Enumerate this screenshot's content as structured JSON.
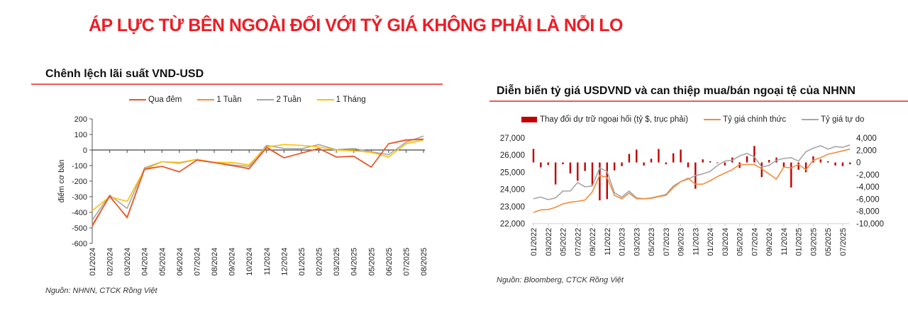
{
  "header": {
    "title": "ÁP LỰC TỪ BÊN NGOÀI ĐỐI VỚI TỶ GIÁ KHÔNG PHẢI LÀ NỖI LO",
    "title_color": "#ee1c25"
  },
  "left_panel": {
    "title": "Chênh lệch lãi suất VND-USD",
    "source": "Nguồn: NHNN, CTCK Rồng Việt",
    "legend": [
      "Qua đêm",
      "1 Tuần",
      "2 Tuần",
      "1 Tháng"
    ]
  },
  "right_panel": {
    "title": "Diễn biến tỷ giá USDVND và can thiệp mua/bán ngoại tệ của NHNN",
    "source": "Nguồn: Bloomberg, CTCK Rồng Việt",
    "legend": [
      "Thay đổi dự trữ ngoại hối (tỷ $, trục phải)",
      "Tỷ giá chính thức",
      "Tỷ giá tự do"
    ]
  },
  "chart_data": [
    {
      "type": "line",
      "title": "Chênh lệch lãi suất VND-USD",
      "xlabel": "",
      "ylabel": "điểm cơ bản",
      "ylim": [
        -600,
        200
      ],
      "yticks": [
        200,
        100,
        0,
        -100,
        -200,
        -300,
        -400,
        -500,
        -600
      ],
      "grid": false,
      "legend_position": "top",
      "categories": [
        "01/2024",
        "02/2024",
        "03/2024",
        "04/2024",
        "05/2024",
        "06/2024",
        "07/2024",
        "08/2024",
        "09/2024",
        "10/2024",
        "11/2024",
        "12/2024",
        "01/2025",
        "02/2025",
        "03/2025",
        "04/2025",
        "05/2025",
        "06/2025",
        "07/2025",
        "08/2025"
      ],
      "series": [
        {
          "name": "Qua đêm",
          "color": "#e8542a",
          "values": [
            -490,
            -295,
            -435,
            -125,
            -105,
            -140,
            -65,
            -80,
            -100,
            -120,
            15,
            -50,
            -20,
            10,
            -45,
            -40,
            -110,
            40,
            65,
            70
          ]
        },
        {
          "name": "1 Tuần",
          "color": "#f28c3c",
          "values": [
            -480,
            -300,
            -430,
            -120,
            -105,
            -140,
            -65,
            -82,
            -100,
            -118,
            20,
            -50,
            -20,
            10,
            -45,
            -40,
            -110,
            40,
            62,
            68
          ]
        },
        {
          "name": "2 Tuần",
          "color": "#a6a6a6",
          "values": [
            -450,
            -290,
            -375,
            -115,
            -75,
            -85,
            -60,
            -80,
            -95,
            -105,
            30,
            10,
            8,
            35,
            2,
            10,
            -12,
            -30,
            50,
            90
          ]
        },
        {
          "name": "1 Tháng",
          "color": "#ffc000",
          "values": [
            -390,
            -300,
            -330,
            -125,
            -75,
            -80,
            -60,
            -80,
            -80,
            -95,
            20,
            35,
            30,
            20,
            0,
            -5,
            -15,
            -45,
            40,
            65
          ]
        }
      ]
    },
    {
      "type": "line+bar",
      "title": "Diễn biến tỷ giá USDVND và can thiệp mua/bán ngoại tệ của NHNN",
      "xlabel": "",
      "ylabel_left": "",
      "ylabel_right": "",
      "ylim_left": [
        22000,
        27000
      ],
      "yticks_left": [
        27000,
        26000,
        25000,
        24000,
        23000,
        22000
      ],
      "ylim_right": [
        -10000,
        4000
      ],
      "yticks_right": [
        4000,
        2000,
        0,
        -2000,
        -4000,
        -6000,
        -8000,
        -10000
      ],
      "grid": false,
      "legend_position": "top",
      "xtick_labels": [
        "01/2022",
        "03/2022",
        "05/2022",
        "07/2022",
        "09/2022",
        "11/2022",
        "01/2023",
        "03/2023",
        "05/2023",
        "07/2023",
        "09/2023",
        "11/2023",
        "01/2024",
        "03/2024",
        "05/2024",
        "07/2024",
        "09/2024",
        "11/2024",
        "01/2025",
        "03/2025",
        "05/2025",
        "07/2025"
      ],
      "categories": [
        "01/2022",
        "02/2022",
        "03/2022",
        "04/2022",
        "05/2022",
        "06/2022",
        "07/2022",
        "08/2022",
        "09/2022",
        "10/2022",
        "11/2022",
        "12/2022",
        "01/2023",
        "02/2023",
        "03/2023",
        "04/2023",
        "05/2023",
        "06/2023",
        "07/2023",
        "08/2023",
        "09/2023",
        "10/2023",
        "11/2023",
        "12/2023",
        "01/2024",
        "02/2024",
        "03/2024",
        "04/2024",
        "05/2024",
        "06/2024",
        "07/2024",
        "08/2024",
        "09/2024",
        "10/2024",
        "11/2024",
        "12/2024",
        "01/2025",
        "02/2025",
        "03/2025",
        "04/2025",
        "05/2025",
        "06/2025",
        "07/2025",
        "08/2025"
      ],
      "series": [
        {
          "name": "Thay đổi dự trữ ngoại hối (tỷ $, trục phải)",
          "type": "bar",
          "axis": "right",
          "color": "#c00000",
          "values": [
            2200,
            -800,
            -400,
            -3600,
            -300,
            -1800,
            -3000,
            -1400,
            -3700,
            -6200,
            -6000,
            -1300,
            -600,
            1400,
            2100,
            -500,
            600,
            2200,
            -300,
            1500,
            2100,
            -800,
            -4300,
            500,
            200,
            -100,
            -500,
            800,
            -900,
            1000,
            2700,
            -2400,
            400,
            800,
            -800,
            -4100,
            -1200,
            -1600,
            1000,
            500,
            200,
            -500,
            -600,
            -300
          ]
        },
        {
          "name": "Tỷ giá chính thức",
          "type": "line",
          "axis": "left",
          "color": "#f28c3c",
          "values": [
            22650,
            22800,
            22820,
            22950,
            23150,
            23250,
            23300,
            23380,
            23850,
            24820,
            24700,
            23650,
            23450,
            23780,
            23450,
            23450,
            23480,
            23580,
            23650,
            24100,
            24450,
            24650,
            24300,
            24300,
            24500,
            24750,
            24950,
            25150,
            25450,
            25450,
            25450,
            25200,
            24900,
            24600,
            25300,
            25250,
            25450,
            25150,
            25700,
            25850,
            26050,
            26150,
            26250,
            26350
          ]
        },
        {
          "name": "Tỷ giá tự do",
          "type": "line",
          "axis": "left",
          "color": "#a6a6a6",
          "values": [
            23450,
            23550,
            23400,
            23500,
            23900,
            23900,
            24400,
            24150,
            24200,
            25250,
            25050,
            23800,
            23550,
            23900,
            23500,
            23450,
            23500,
            23600,
            23700,
            24200,
            24450,
            24600,
            24800,
            24900,
            25050,
            25400,
            25650,
            25700,
            25950,
            26100,
            25900,
            25300,
            25400,
            25700,
            25800,
            25850,
            25650,
            26200,
            26400,
            26550,
            26350,
            26500,
            26450,
            26600
          ]
        }
      ]
    }
  ]
}
